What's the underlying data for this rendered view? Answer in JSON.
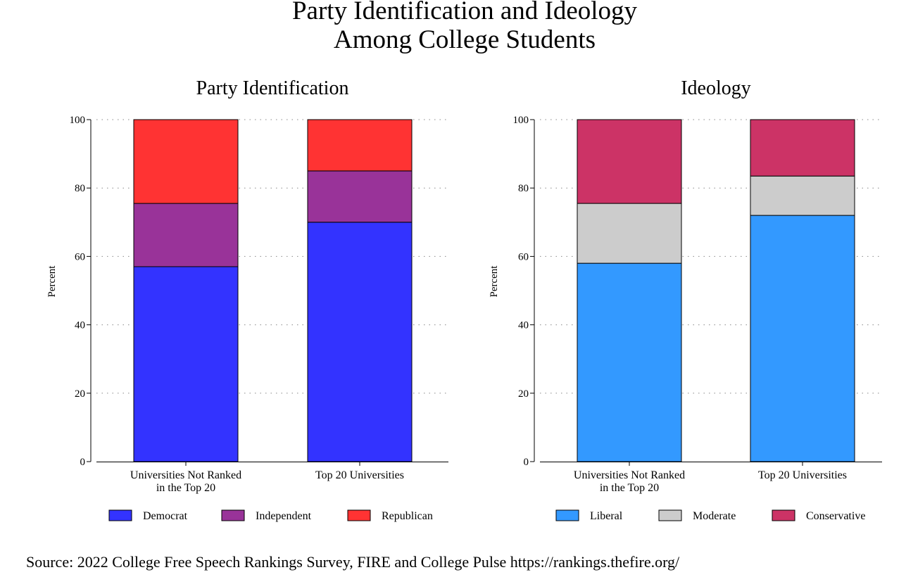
{
  "title_lines": [
    "Party Identification and Ideology",
    "Among College Students"
  ],
  "source": "Source: 2022 College Free Speech Rankings Survey, FIRE and College Pulse https://rankings.thefire.org/",
  "chart_data": [
    {
      "type": "bar",
      "stacked": true,
      "title": "Party Identification",
      "ylabel": "Percent",
      "xlabel": "",
      "ylim": [
        0,
        100
      ],
      "yticks": [
        0,
        20,
        40,
        60,
        80,
        100
      ],
      "grid": true,
      "legend": "bottom",
      "categories": [
        [
          "Universities Not Ranked",
          "in the Top 20"
        ],
        [
          "Top 20 Universities"
        ]
      ],
      "series": [
        {
          "name": "Democrat",
          "color": "#3333ff",
          "values": [
            57,
            70
          ]
        },
        {
          "name": "Independent",
          "color": "#993399",
          "values": [
            18.5,
            15
          ]
        },
        {
          "name": "Republican",
          "color": "#ff3333",
          "values": [
            24.5,
            15
          ]
        }
      ]
    },
    {
      "type": "bar",
      "stacked": true,
      "title": "Ideology",
      "ylabel": "Percent",
      "xlabel": "",
      "ylim": [
        0,
        100
      ],
      "yticks": [
        0,
        20,
        40,
        60,
        80,
        100
      ],
      "grid": true,
      "legend": "bottom",
      "categories": [
        [
          "Universities Not Ranked",
          "in the Top 20"
        ],
        [
          "Top 20 Universities"
        ]
      ],
      "series": [
        {
          "name": "Liberal",
          "color": "#3399ff",
          "values": [
            58,
            72
          ]
        },
        {
          "name": "Moderate",
          "color": "#cccccc",
          "values": [
            17.5,
            11.5
          ]
        },
        {
          "name": "Conservative",
          "color": "#cc3366",
          "values": [
            24.5,
            16.5
          ]
        }
      ]
    }
  ]
}
